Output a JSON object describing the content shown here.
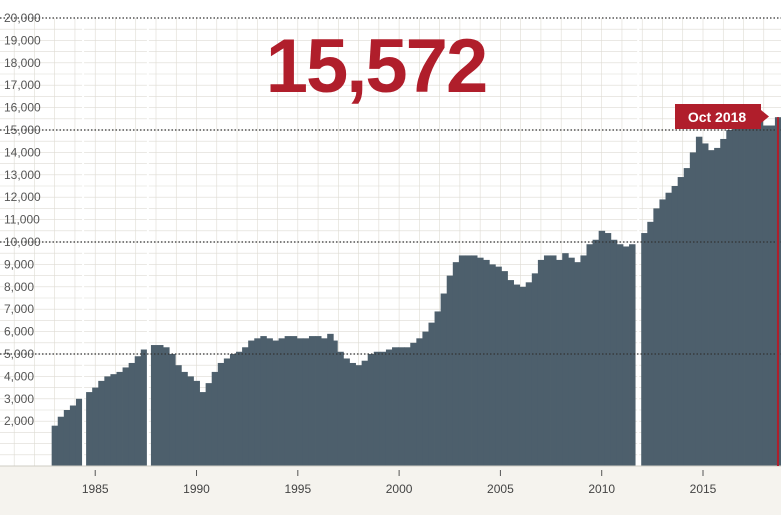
{
  "headline_value": "15,572",
  "callout_label": "Oct 2018",
  "colors": {
    "bars": "#4d5f6c",
    "accent": "#b01e2b",
    "grid_major": "#333333",
    "grid_minor": "#dedbd3",
    "plot_bg": "#ffffff",
    "page_bg": "#f5f3ee"
  },
  "chart_data": {
    "type": "bar",
    "title": "",
    "xlabel": "",
    "ylabel": "",
    "ylim": [
      0,
      20000
    ],
    "xlim": [
      1980.3,
      2018.85
    ],
    "y_ticks": [
      "2,000",
      "3,000",
      "4,000",
      "5,000",
      "6,000",
      "7,000",
      "8,000",
      "9,000",
      "10,000",
      "11,000",
      "12,000",
      "13,000",
      "14,000",
      "15,000",
      "16,000",
      "17,000",
      "18,000",
      "19,000",
      "20,000"
    ],
    "y_tick_values": [
      2000,
      3000,
      4000,
      5000,
      6000,
      7000,
      8000,
      9000,
      10000,
      11000,
      12000,
      13000,
      14000,
      15000,
      16000,
      17000,
      18000,
      19000,
      20000
    ],
    "major_gridlines": [
      5000,
      10000,
      15000,
      20000
    ],
    "x_ticks": [
      "1985",
      "1990",
      "1995",
      "2000",
      "2005",
      "2010",
      "2015"
    ],
    "x_tick_values": [
      1985,
      1990,
      1995,
      2000,
      2005,
      2010,
      2015
    ],
    "gaps": [
      1984.4,
      1987.6,
      2011.8
    ],
    "last_value": 15572,
    "series_points": [
      [
        1983.0,
        1800
      ],
      [
        1983.3,
        2200
      ],
      [
        1983.6,
        2500
      ],
      [
        1983.9,
        2700
      ],
      [
        1984.2,
        3000
      ],
      [
        1984.4,
        null
      ],
      [
        1984.7,
        3300
      ],
      [
        1985.0,
        3500
      ],
      [
        1985.3,
        3800
      ],
      [
        1985.6,
        4000
      ],
      [
        1985.9,
        4100
      ],
      [
        1986.2,
        4200
      ],
      [
        1986.5,
        4400
      ],
      [
        1986.8,
        4600
      ],
      [
        1987.1,
        4900
      ],
      [
        1987.4,
        5200
      ],
      [
        1987.6,
        null
      ],
      [
        1987.9,
        5400
      ],
      [
        1988.2,
        5400
      ],
      [
        1988.5,
        5300
      ],
      [
        1988.8,
        5000
      ],
      [
        1989.1,
        4500
      ],
      [
        1989.4,
        4200
      ],
      [
        1989.7,
        4000
      ],
      [
        1990.0,
        3800
      ],
      [
        1990.3,
        3300
      ],
      [
        1990.6,
        3700
      ],
      [
        1990.9,
        4200
      ],
      [
        1991.2,
        4600
      ],
      [
        1991.5,
        4800
      ],
      [
        1991.8,
        5000
      ],
      [
        1992.1,
        5100
      ],
      [
        1992.4,
        5300
      ],
      [
        1992.7,
        5600
      ],
      [
        1993.0,
        5700
      ],
      [
        1993.3,
        5800
      ],
      [
        1993.6,
        5700
      ],
      [
        1993.9,
        5600
      ],
      [
        1994.2,
        5700
      ],
      [
        1994.5,
        5800
      ],
      [
        1994.8,
        5800
      ],
      [
        1995.1,
        5700
      ],
      [
        1995.4,
        5700
      ],
      [
        1995.7,
        5800
      ],
      [
        1996.0,
        5800
      ],
      [
        1996.3,
        5700
      ],
      [
        1996.6,
        5900
      ],
      [
        1996.8,
        5600
      ],
      [
        1997.1,
        5100
      ],
      [
        1997.4,
        4800
      ],
      [
        1997.7,
        4600
      ],
      [
        1998.0,
        4500
      ],
      [
        1998.3,
        4700
      ],
      [
        1998.6,
        5000
      ],
      [
        1998.9,
        5100
      ],
      [
        1999.2,
        5100
      ],
      [
        1999.5,
        5200
      ],
      [
        1999.8,
        5300
      ],
      [
        2000.1,
        5300
      ],
      [
        2000.4,
        5300
      ],
      [
        2000.7,
        5500
      ],
      [
        2001.0,
        5700
      ],
      [
        2001.3,
        6000
      ],
      [
        2001.6,
        6400
      ],
      [
        2001.9,
        6900
      ],
      [
        2002.2,
        7700
      ],
      [
        2002.5,
        8500
      ],
      [
        2002.8,
        9100
      ],
      [
        2003.1,
        9400
      ],
      [
        2003.4,
        9400
      ],
      [
        2003.7,
        9400
      ],
      [
        2004.0,
        9300
      ],
      [
        2004.3,
        9200
      ],
      [
        2004.6,
        9000
      ],
      [
        2004.9,
        8900
      ],
      [
        2005.2,
        8700
      ],
      [
        2005.5,
        8300
      ],
      [
        2005.8,
        8100
      ],
      [
        2006.1,
        8000
      ],
      [
        2006.4,
        8200
      ],
      [
        2006.7,
        8600
      ],
      [
        2007.0,
        9200
      ],
      [
        2007.3,
        9400
      ],
      [
        2007.6,
        9400
      ],
      [
        2007.9,
        9200
      ],
      [
        2008.2,
        9500
      ],
      [
        2008.5,
        9300
      ],
      [
        2008.8,
        9100
      ],
      [
        2009.1,
        9400
      ],
      [
        2009.4,
        9900
      ],
      [
        2009.7,
        10100
      ],
      [
        2010.0,
        10500
      ],
      [
        2010.3,
        10400
      ],
      [
        2010.6,
        10100
      ],
      [
        2010.9,
        9900
      ],
      [
        2011.2,
        9800
      ],
      [
        2011.5,
        9900
      ],
      [
        2011.8,
        null
      ],
      [
        2012.1,
        10400
      ],
      [
        2012.4,
        10900
      ],
      [
        2012.7,
        11500
      ],
      [
        2013.0,
        11900
      ],
      [
        2013.3,
        12200
      ],
      [
        2013.6,
        12500
      ],
      [
        2013.9,
        12900
      ],
      [
        2014.2,
        13300
      ],
      [
        2014.5,
        14000
      ],
      [
        2014.8,
        14700
      ],
      [
        2015.1,
        14400
      ],
      [
        2015.4,
        14100
      ],
      [
        2015.7,
        14200
      ],
      [
        2016.0,
        14600
      ],
      [
        2016.3,
        15000
      ],
      [
        2016.6,
        15300
      ],
      [
        2016.9,
        15400
      ],
      [
        2017.2,
        15500
      ],
      [
        2017.5,
        15500
      ],
      [
        2017.8,
        15400
      ],
      [
        2018.1,
        15200
      ],
      [
        2018.4,
        15200
      ],
      [
        2018.7,
        15572
      ]
    ]
  }
}
